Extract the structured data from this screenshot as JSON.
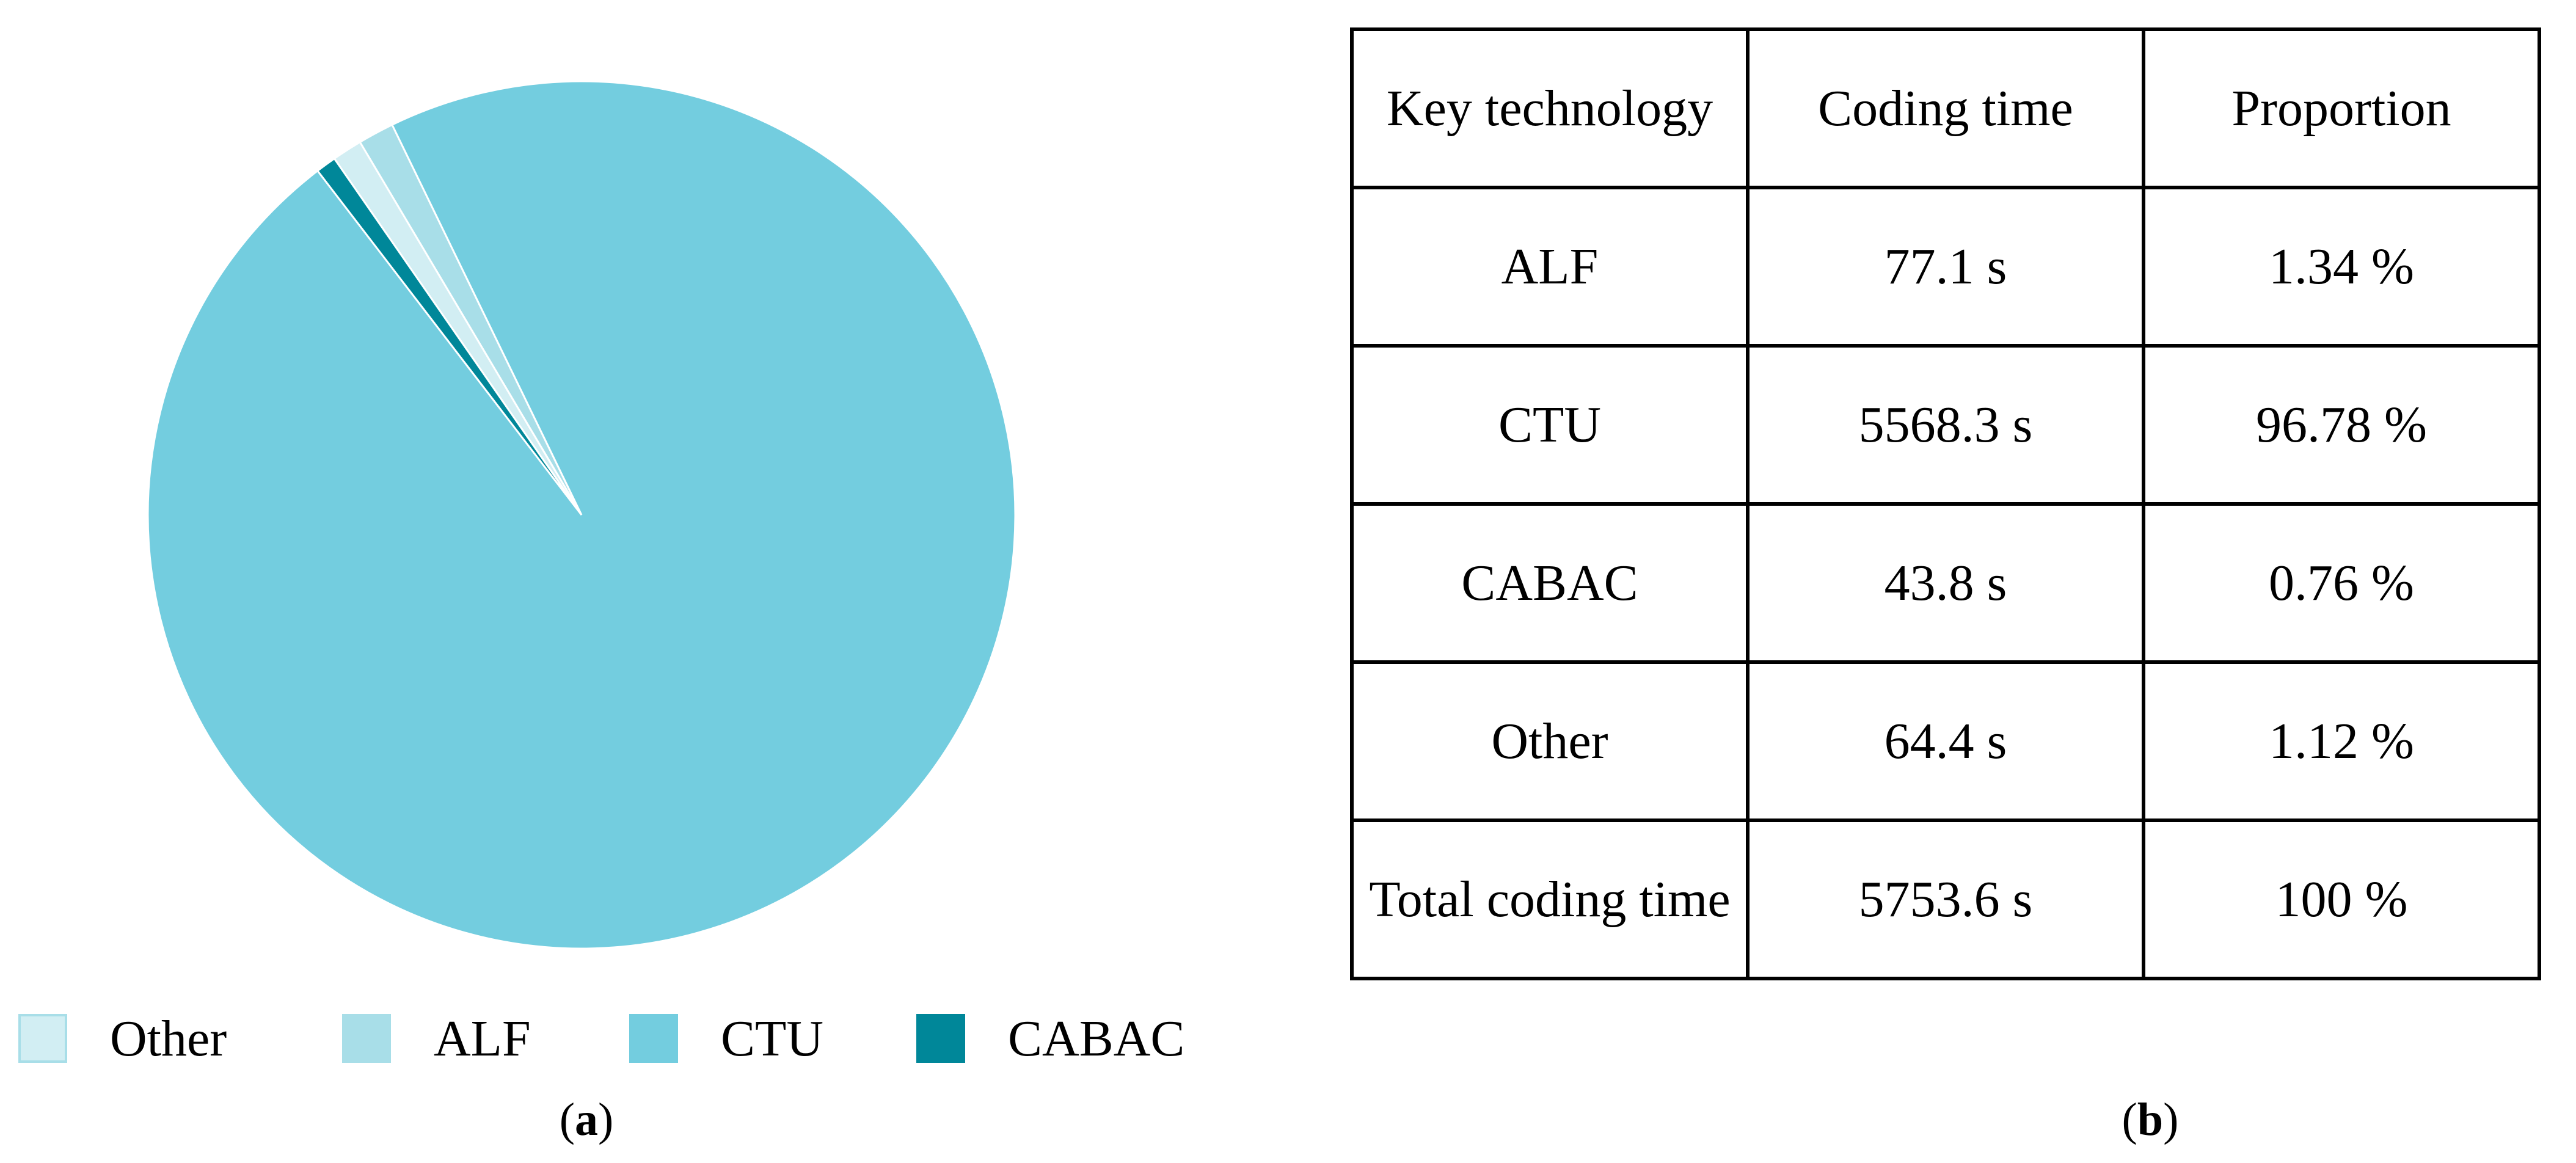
{
  "chart_data": {
    "type": "pie",
    "slices": [
      {
        "label": "Other",
        "value": 1.12,
        "color": "#d2eef3"
      },
      {
        "label": "ALF",
        "value": 1.34,
        "color": "#a8dee8"
      },
      {
        "label": "CTU",
        "value": 96.78,
        "color": "#73cddf"
      },
      {
        "label": "CABAC",
        "value": 0.76,
        "color": "#008799"
      }
    ],
    "legend_position": "bottom",
    "border_color": "#ffffff"
  },
  "legend": {
    "items": [
      {
        "label": "Other",
        "color": "#d2eef3"
      },
      {
        "label": "ALF",
        "color": "#a8dee8"
      },
      {
        "label": "CTU",
        "color": "#73cddf"
      },
      {
        "label": "CABAC",
        "color": "#008799"
      }
    ]
  },
  "captions": {
    "a": "a",
    "b": "b"
  },
  "table": {
    "header": [
      "Key technology",
      "Coding time",
      "Proportion"
    ],
    "rows": [
      [
        "ALF",
        "77.1 s",
        "1.34 %"
      ],
      [
        "CTU",
        "5568.3 s",
        "96.78 %"
      ],
      [
        "CABAC",
        "43.8 s",
        "0.76 %"
      ],
      [
        "Other",
        "64.4 s",
        "1.12 %"
      ],
      [
        "Total coding time",
        "5753.6 s",
        "100 %"
      ]
    ]
  }
}
